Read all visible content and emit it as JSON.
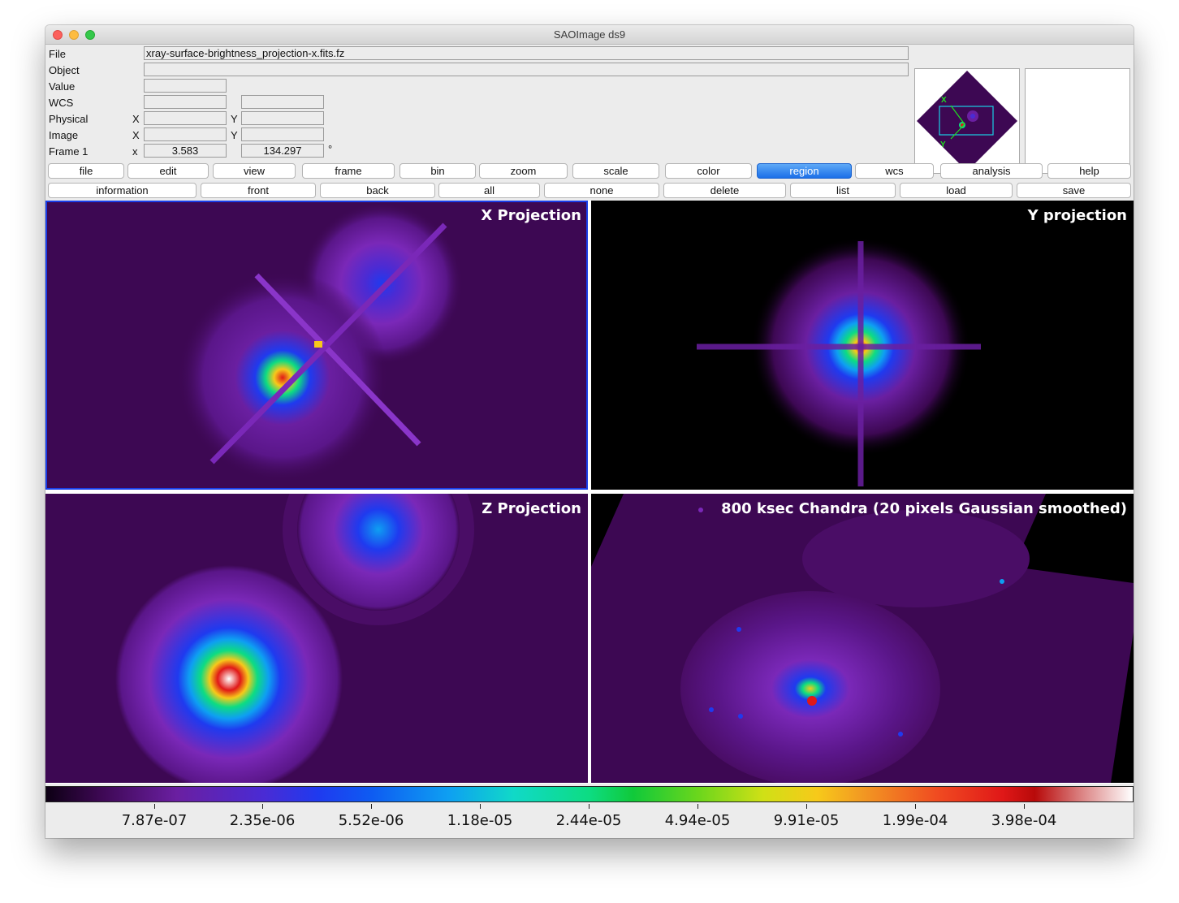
{
  "window": {
    "title": "SAOImage ds9"
  },
  "info": {
    "file_label": "File",
    "file_value": "xray-surface-brightness_projection-x.fits.fz",
    "object_label": "Object",
    "object_value": "",
    "value_label": "Value",
    "value_value": "",
    "wcs_label": "WCS",
    "physical_label": "Physical",
    "image_label": "Image",
    "frame_label": "Frame 1",
    "x_upper": "X",
    "y_upper": "Y",
    "x_lower": "x",
    "frame_x": "3.583",
    "frame_angle": "134.297",
    "degree_symbol": "°"
  },
  "panner": {
    "x_axis": "X",
    "y_axis": "Y"
  },
  "menu_buttons": [
    "file",
    "edit",
    "view",
    "frame",
    "bin",
    "zoom",
    "scale",
    "color",
    "region",
    "wcs",
    "analysis",
    "help"
  ],
  "active_menu": "region",
  "region_buttons": [
    "information",
    "front",
    "back",
    "all",
    "none",
    "delete",
    "list",
    "load",
    "save"
  ],
  "frames": [
    {
      "title": "X Projection"
    },
    {
      "title": "Y projection"
    },
    {
      "title": "Z Projection"
    },
    {
      "title": "800 ksec Chandra (20 pixels Gaussian smoothed)"
    }
  ],
  "colorbar": {
    "labels": [
      "7.87e-07",
      "2.35e-06",
      "5.52e-06",
      "1.18e-05",
      "2.44e-05",
      "4.94e-05",
      "9.91e-05",
      "1.99e-04",
      "3.98e-04"
    ]
  },
  "colors": {
    "accent": "#1b6fe8",
    "frame_border": "#1a3fe8",
    "colormap_low": "#3d0853"
  }
}
